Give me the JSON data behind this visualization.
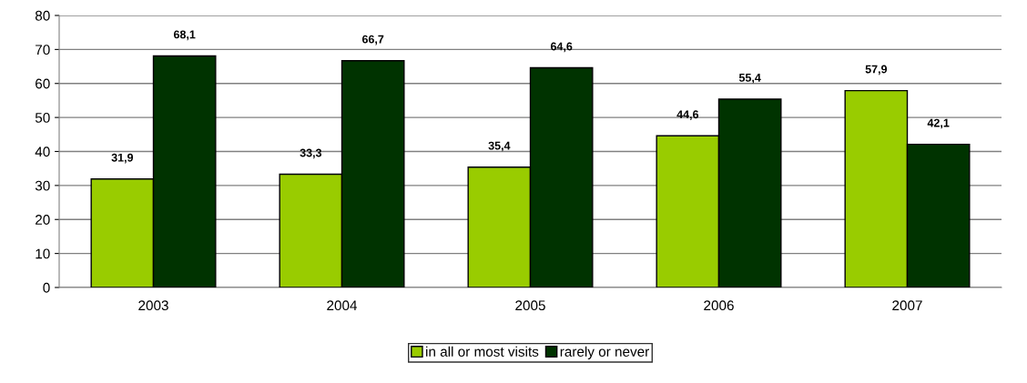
{
  "chart_data": {
    "type": "bar",
    "categories": [
      "2003",
      "2004",
      "2005",
      "2006",
      "2007"
    ],
    "series": [
      {
        "name": "in all or most visits",
        "color": "#99cc00",
        "values": [
          31.9,
          33.3,
          35.4,
          44.6,
          57.9
        ],
        "value_labels": [
          "31,9",
          "33,3",
          "35,4",
          "44,6",
          "57,9"
        ]
      },
      {
        "name": "rarely or never",
        "color": "#003300",
        "values": [
          68.1,
          66.7,
          64.6,
          55.4,
          42.1
        ],
        "value_labels": [
          "68,1",
          "66,7",
          "64,6",
          "55,4",
          "42,1"
        ]
      }
    ],
    "ylim": [
      0,
      80
    ],
    "yticks": [
      0,
      10,
      20,
      30,
      40,
      50,
      60,
      70,
      80
    ],
    "grid": "y",
    "legend": "bottom"
  }
}
